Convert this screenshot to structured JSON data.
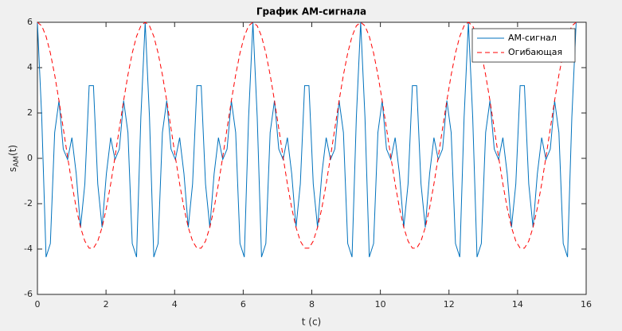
{
  "chart_data": {
    "type": "line",
    "title": "График АМ-сигнала",
    "xlabel": "t (c)",
    "ylabel_parts": [
      "s",
      "AM",
      "(t)"
    ],
    "x": [
      0,
      0.1257,
      0.2513,
      0.377,
      0.5027,
      0.6283,
      0.754,
      0.8796,
      1.0053,
      1.131,
      1.2566,
      1.3823,
      1.508,
      1.6336,
      1.7593,
      1.885,
      2.0106,
      2.1363,
      2.2619,
      2.3876,
      2.5133,
      2.6389,
      2.7646,
      2.8903,
      3.0159,
      3.1416,
      3.2673,
      3.3929,
      3.5186,
      3.6442,
      3.7699,
      3.8956,
      4.0212,
      4.1469,
      4.2726,
      4.3982,
      4.5239,
      4.6495,
      4.7752,
      4.9009,
      5.0265,
      5.1522,
      5.2779,
      5.4035,
      5.5292,
      5.6549,
      5.7805,
      5.9062,
      6.0319,
      6.1575,
      6.2832,
      6.4089,
      6.5345,
      6.6602,
      6.7858,
      6.9115,
      7.0372,
      7.1628,
      7.2885,
      7.4142,
      7.5398,
      7.6655,
      7.7911,
      7.9168,
      8.0425,
      8.1681,
      8.2938,
      8.4195,
      8.5451,
      8.6708,
      8.7965,
      8.9221,
      9.0478,
      9.1735,
      9.2991,
      9.4248,
      9.5505,
      9.6761,
      9.8018,
      9.9274,
      10.0531,
      10.1788,
      10.3044,
      10.4301,
      10.5558,
      10.6814,
      10.8071,
      10.9327,
      11.0584,
      11.1841,
      11.3097,
      11.4354,
      11.5611,
      11.6867,
      11.8124,
      11.9381,
      12.0637,
      12.1894,
      12.3151,
      12.4407,
      12.5664,
      12.6921,
      12.8177,
      12.9434,
      13.069,
      13.1947,
      13.3204,
      13.446,
      13.5717,
      13.6974,
      13.823,
      13.9487,
      14.0743,
      14.2,
      14.3257,
      14.4513,
      14.577,
      14.7027,
      14.8283,
      14.954,
      15.0797,
      15.2053,
      15.331,
      15.4567,
      15.5823,
      15.708
    ],
    "series": [
      {
        "name": "АМ-сигнал",
        "color": "#0072bd",
        "dash": false,
        "values": [
          6,
          1.8056,
          -4.3537,
          -3.7577,
          1.1369,
          2.5451,
          0.4061,
          -0.051,
          0.9133,
          -0.6759,
          -3.0451,
          -1.1276,
          3.2042,
          3.2042,
          -1.1276,
          -3.0451,
          -0.6759,
          0.9133,
          -0.051,
          0.4061,
          2.5451,
          1.1369,
          -3.7577,
          -4.3537,
          1.8056,
          6,
          1.8056,
          -4.3537,
          -3.7577,
          1.1369,
          2.5451,
          0.4061,
          -0.051,
          0.9133,
          -0.6759,
          -3.0451,
          -1.1276,
          3.2042,
          3.2042,
          -1.1276,
          -3.0451,
          -0.6759,
          0.9133,
          -0.051,
          0.4061,
          2.5451,
          1.1369,
          -3.7577,
          -4.3537,
          1.8056,
          6,
          1.8056,
          -4.3537,
          -3.7577,
          1.1369,
          2.5451,
          0.4061,
          -0.051,
          0.9133,
          -0.6759,
          -3.0451,
          -1.1276,
          3.2042,
          3.2042,
          -1.1276,
          -3.0451,
          -0.6759,
          0.9133,
          -0.051,
          0.4061,
          2.5451,
          1.1369,
          -3.7577,
          -4.3537,
          1.8056,
          6,
          1.8056,
          -4.3537,
          -3.7577,
          1.1369,
          2.5451,
          0.4061,
          -0.051,
          0.9133,
          -0.6759,
          -3.0451,
          -1.1276,
          3.2042,
          3.2042,
          -1.1276,
          -3.0451,
          -0.6759,
          0.9133,
          -0.051,
          0.4061,
          2.5451,
          1.1369,
          -3.7577,
          -4.3537,
          1.8056,
          6,
          1.8056,
          -4.3537,
          -3.7577,
          1.1369,
          2.5451,
          0.4061,
          -0.051,
          0.9133,
          -0.6759,
          -3.0451,
          -1.1276,
          3.2042,
          3.2042,
          -1.1276,
          -3.0451,
          -0.6759,
          0.9133,
          -0.051,
          0.4061,
          2.5451,
          1.1369,
          -3.7577,
          -4.3537,
          1.8056,
          6
        ]
      },
      {
        "name": "Огибающая",
        "color": "#ff0000",
        "dash": true,
        "values": [
          6,
          5.8429,
          5.3815,
          4.6448,
          3.6791,
          2.5451,
          1.314,
          0.0631,
          -1.1289,
          -2.1871,
          -3.0451,
          -3.6489,
          -3.9606,
          -3.9606,
          -3.6489,
          -3.0451,
          -2.1871,
          -1.1289,
          0.0631,
          1.314,
          2.5451,
          3.6791,
          4.6448,
          5.3815,
          5.8429,
          6,
          5.8429,
          5.3815,
          4.6448,
          3.6791,
          2.5451,
          1.314,
          0.0631,
          -1.1289,
          -2.1871,
          -3.0451,
          -3.6489,
          -3.9606,
          -3.9606,
          -3.6489,
          -3.0451,
          -2.1871,
          -1.1289,
          0.0631,
          1.314,
          2.5451,
          3.6791,
          4.6448,
          5.3815,
          5.8429,
          6,
          5.8429,
          5.3815,
          4.6448,
          3.6791,
          2.5451,
          1.314,
          0.0631,
          -1.1289,
          -2.1871,
          -3.0451,
          -3.6489,
          -3.9606,
          -3.9606,
          -3.6489,
          -3.0451,
          -2.1871,
          -1.1289,
          0.0631,
          1.314,
          2.5451,
          3.6791,
          4.6448,
          5.3815,
          5.8429,
          6,
          5.8429,
          5.3815,
          4.6448,
          3.6791,
          2.5451,
          1.314,
          0.0631,
          -1.1289,
          -2.1871,
          -3.0451,
          -3.6489,
          -3.9606,
          -3.9606,
          -3.6489,
          -3.0451,
          -2.1871,
          -1.1289,
          0.0631,
          1.314,
          2.5451,
          3.6791,
          4.6448,
          5.3815,
          5.8429,
          6,
          5.8429,
          5.3815,
          4.6448,
          3.6791,
          2.5451,
          1.314,
          0.0631,
          -1.1289,
          -2.1871,
          -3.0451,
          -3.6489,
          -3.9606,
          -3.9606,
          -3.6489,
          -3.0451,
          -2.1871,
          -1.1289,
          0.0631,
          1.314,
          2.5451,
          3.6791,
          4.6448,
          5.3815,
          5.8429,
          6
        ]
      }
    ],
    "xlim": [
      0,
      16
    ],
    "xticks": [
      0,
      2,
      4,
      6,
      8,
      10,
      12,
      14,
      16
    ],
    "ylim": [
      -6,
      6
    ],
    "yticks": [
      -6,
      -4,
      -2,
      0,
      2,
      4,
      6
    ],
    "grid": false,
    "legend": "northeast"
  }
}
